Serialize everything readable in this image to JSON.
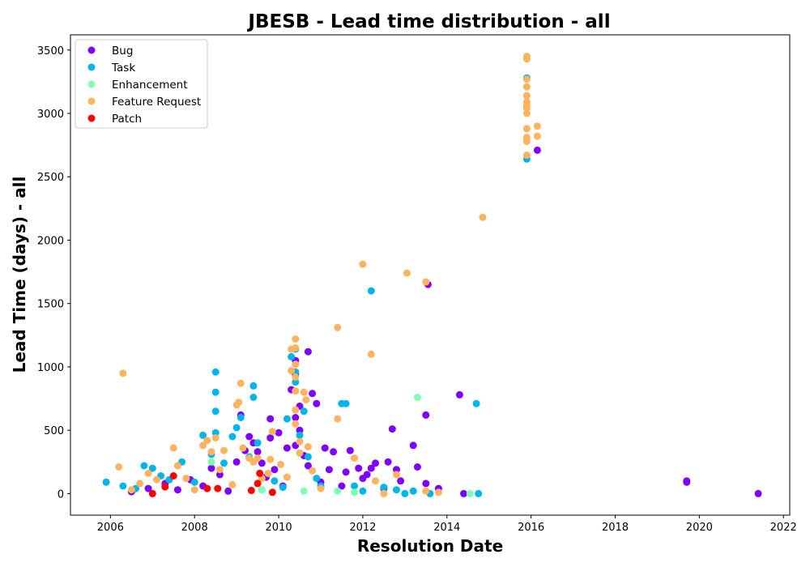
{
  "chart_data": {
    "type": "scatter",
    "title": "JBESB - Lead time distribution - all",
    "xlabel": "Resolution Date",
    "ylabel": "Lead Time (days) - all",
    "xlim": [
      2005.05,
      2022.15
    ],
    "ylim": [
      -170,
      3620
    ],
    "xticks": [
      "2006",
      "2008",
      "2010",
      "2012",
      "2014",
      "2016",
      "2018",
      "2020",
      "2022"
    ],
    "yticks": [
      "0",
      "500",
      "1000",
      "1500",
      "2000",
      "2500",
      "3000",
      "3500"
    ],
    "grid": false,
    "legend_position": "upper-left",
    "series": [
      {
        "name": "Bug",
        "color": "#8000ff",
        "points": [
          [
            2006.5,
            15
          ],
          [
            2006.9,
            40
          ],
          [
            2007.3,
            80
          ],
          [
            2007.6,
            30
          ],
          [
            2007.9,
            110
          ],
          [
            2008.2,
            60
          ],
          [
            2008.4,
            200
          ],
          [
            2008.6,
            150
          ],
          [
            2008.8,
            20
          ],
          [
            2009.0,
            250
          ],
          [
            2009.1,
            620
          ],
          [
            2009.2,
            340
          ],
          [
            2009.3,
            450
          ],
          [
            2009.4,
            400
          ],
          [
            2009.5,
            330
          ],
          [
            2009.6,
            240
          ],
          [
            2009.7,
            130
          ],
          [
            2009.8,
            440
          ],
          [
            2009.8,
            590
          ],
          [
            2009.9,
            190
          ],
          [
            2010.0,
            480
          ],
          [
            2010.1,
            60
          ],
          [
            2010.2,
            360
          ],
          [
            2010.3,
            820
          ],
          [
            2010.4,
            1050
          ],
          [
            2010.4,
            940
          ],
          [
            2010.4,
            600
          ],
          [
            2010.4,
            380
          ],
          [
            2010.5,
            690
          ],
          [
            2010.5,
            500
          ],
          [
            2010.6,
            300
          ],
          [
            2010.7,
            1120
          ],
          [
            2010.7,
            220
          ],
          [
            2010.8,
            790
          ],
          [
            2010.9,
            710
          ],
          [
            2011.0,
            90
          ],
          [
            2011.1,
            360
          ],
          [
            2011.2,
            190
          ],
          [
            2011.3,
            330
          ],
          [
            2011.5,
            60
          ],
          [
            2011.6,
            170
          ],
          [
            2011.7,
            340
          ],
          [
            2011.9,
            200
          ],
          [
            2012.0,
            120
          ],
          [
            2012.1,
            150
          ],
          [
            2012.2,
            200
          ],
          [
            2012.3,
            240
          ],
          [
            2012.5,
            40
          ],
          [
            2012.6,
            250
          ],
          [
            2012.7,
            510
          ],
          [
            2012.8,
            190
          ],
          [
            2012.9,
            100
          ],
          [
            2013.2,
            380
          ],
          [
            2013.3,
            210
          ],
          [
            2013.5,
            620
          ],
          [
            2013.55,
            1650
          ],
          [
            2013.5,
            80
          ],
          [
            2013.8,
            40
          ],
          [
            2014.3,
            780
          ],
          [
            2014.4,
            0
          ],
          [
            2016.15,
            2710
          ],
          [
            2019.7,
            100
          ],
          [
            2019.7,
            90
          ],
          [
            2021.4,
            0
          ]
        ]
      },
      {
        "name": "Task",
        "color": "#00b5eb",
        "points": [
          [
            2005.9,
            90
          ],
          [
            2006.3,
            60
          ],
          [
            2006.6,
            40
          ],
          [
            2006.8,
            220
          ],
          [
            2007.0,
            200
          ],
          [
            2007.2,
            140
          ],
          [
            2007.4,
            110
          ],
          [
            2007.7,
            250
          ],
          [
            2008.0,
            90
          ],
          [
            2008.2,
            460
          ],
          [
            2008.4,
            310
          ],
          [
            2008.5,
            960
          ],
          [
            2008.5,
            800
          ],
          [
            2008.5,
            650
          ],
          [
            2008.5,
            480
          ],
          [
            2008.7,
            240
          ],
          [
            2008.9,
            450
          ],
          [
            2009.1,
            600
          ],
          [
            2009.0,
            520
          ],
          [
            2009.3,
            290
          ],
          [
            2009.4,
            850
          ],
          [
            2009.4,
            760
          ],
          [
            2009.5,
            400
          ],
          [
            2009.6,
            30
          ],
          [
            2009.9,
            100
          ],
          [
            2010.1,
            50
          ],
          [
            2010.2,
            590
          ],
          [
            2010.3,
            1080
          ],
          [
            2010.4,
            1140
          ],
          [
            2010.4,
            960
          ],
          [
            2010.4,
            880
          ],
          [
            2010.5,
            460
          ],
          [
            2010.6,
            650
          ],
          [
            2010.7,
            290
          ],
          [
            2010.9,
            120
          ],
          [
            2011.0,
            60
          ],
          [
            2011.5,
            710
          ],
          [
            2011.6,
            710
          ],
          [
            2011.8,
            60
          ],
          [
            2012.0,
            20
          ],
          [
            2012.2,
            1600
          ],
          [
            2012.5,
            50
          ],
          [
            2012.8,
            30
          ],
          [
            2013.0,
            0
          ],
          [
            2013.2,
            20
          ],
          [
            2013.6,
            0
          ],
          [
            2014.7,
            710
          ],
          [
            2014.75,
            0
          ],
          [
            2015.9,
            2640
          ],
          [
            2015.9,
            3280
          ]
        ]
      },
      {
        "name": "Enhancement",
        "color": "#80ffb4",
        "points": [
          [
            2008.4,
            250
          ],
          [
            2009.6,
            30
          ],
          [
            2010.6,
            20
          ],
          [
            2011.4,
            20
          ],
          [
            2011.8,
            10
          ],
          [
            2012.5,
            0
          ],
          [
            2013.3,
            760
          ],
          [
            2014.55,
            0
          ]
        ]
      },
      {
        "name": "Feature Request",
        "color": "#ffb360",
        "points": [
          [
            2006.2,
            210
          ],
          [
            2006.3,
            950
          ],
          [
            2006.5,
            30
          ],
          [
            2006.7,
            80
          ],
          [
            2006.9,
            160
          ],
          [
            2007.1,
            110
          ],
          [
            2007.3,
            50
          ],
          [
            2007.5,
            360
          ],
          [
            2007.6,
            220
          ],
          [
            2007.8,
            120
          ],
          [
            2008.0,
            30
          ],
          [
            2008.2,
            380
          ],
          [
            2008.3,
            420
          ],
          [
            2008.4,
            330
          ],
          [
            2008.5,
            440
          ],
          [
            2008.6,
            190
          ],
          [
            2008.7,
            340
          ],
          [
            2008.9,
            70
          ],
          [
            2009.0,
            700
          ],
          [
            2009.05,
            720
          ],
          [
            2009.1,
            870
          ],
          [
            2009.15,
            360
          ],
          [
            2009.3,
            280
          ],
          [
            2009.4,
            250
          ],
          [
            2009.5,
            280
          ],
          [
            2009.6,
            120
          ],
          [
            2009.75,
            160
          ],
          [
            2009.8,
            270
          ],
          [
            2009.85,
            490
          ],
          [
            2010.05,
            230
          ],
          [
            2010.2,
            130
          ],
          [
            2010.3,
            1140
          ],
          [
            2010.3,
            970
          ],
          [
            2010.4,
            1220
          ],
          [
            2010.4,
            1150
          ],
          [
            2010.4,
            1020
          ],
          [
            2010.4,
            920
          ],
          [
            2010.4,
            810
          ],
          [
            2010.4,
            660
          ],
          [
            2010.4,
            550
          ],
          [
            2010.5,
            410
          ],
          [
            2010.5,
            320
          ],
          [
            2010.6,
            800
          ],
          [
            2010.65,
            740
          ],
          [
            2010.7,
            370
          ],
          [
            2010.8,
            180
          ],
          [
            2011.0,
            40
          ],
          [
            2011.4,
            590
          ],
          [
            2011.4,
            1310
          ],
          [
            2011.8,
            280
          ],
          [
            2012.0,
            1810
          ],
          [
            2012.2,
            1100
          ],
          [
            2012.3,
            100
          ],
          [
            2012.5,
            0
          ],
          [
            2012.8,
            150
          ],
          [
            2013.05,
            1740
          ],
          [
            2013.5,
            1670
          ],
          [
            2013.5,
            20
          ],
          [
            2013.8,
            10
          ],
          [
            2014.85,
            2180
          ],
          [
            2015.9,
            3450
          ],
          [
            2015.9,
            3430
          ],
          [
            2015.9,
            3270
          ],
          [
            2015.9,
            3210
          ],
          [
            2015.9,
            3140
          ],
          [
            2015.9,
            3090
          ],
          [
            2015.9,
            3060
          ],
          [
            2015.9,
            3040
          ],
          [
            2015.9,
            3000
          ],
          [
            2015.9,
            2880
          ],
          [
            2015.9,
            2810
          ],
          [
            2015.9,
            2780
          ],
          [
            2015.9,
            2670
          ],
          [
            2016.15,
            2900
          ],
          [
            2016.15,
            2820
          ]
        ]
      },
      {
        "name": "Patch",
        "color": "#ff0000",
        "points": [
          [
            2007.0,
            0
          ],
          [
            2007.3,
            55
          ],
          [
            2007.5,
            140
          ],
          [
            2008.3,
            40
          ],
          [
            2008.55,
            40
          ],
          [
            2009.35,
            25
          ],
          [
            2009.5,
            80
          ],
          [
            2009.55,
            160
          ],
          [
            2009.85,
            10
          ]
        ]
      }
    ]
  }
}
